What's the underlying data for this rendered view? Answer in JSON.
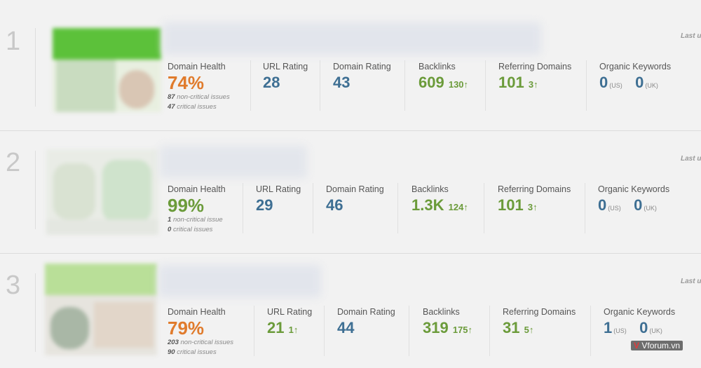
{
  "last_updated_label": "Last u",
  "rows": [
    {
      "rank": "1",
      "domain_health": {
        "label": "Domain Health",
        "value": "74%",
        "noncritical_count": "87",
        "noncritical_text": "non-critical issues",
        "critical_count": "47",
        "critical_text": "critical issues"
      },
      "url_rating": {
        "label": "URL Rating",
        "value": "28",
        "delta": ""
      },
      "domain_rating": {
        "label": "Domain Rating",
        "value": "43"
      },
      "backlinks": {
        "label": "Backlinks",
        "value": "609",
        "delta": "130"
      },
      "referring_domains": {
        "label": "Referring Domains",
        "value": "101",
        "delta": "3"
      },
      "organic_keywords": {
        "label": "Organic Keywords",
        "us_value": "0",
        "us_label": "(US)",
        "uk_value": "0",
        "uk_label": "(UK)"
      }
    },
    {
      "rank": "2",
      "domain_health": {
        "label": "Domain Health",
        "value": "99%",
        "noncritical_count": "1",
        "noncritical_text": "non-critical issue",
        "critical_count": "0",
        "critical_text": "critical issues"
      },
      "url_rating": {
        "label": "URL Rating",
        "value": "29",
        "delta": ""
      },
      "domain_rating": {
        "label": "Domain Rating",
        "value": "46"
      },
      "backlinks": {
        "label": "Backlinks",
        "value": "1.3K",
        "delta": "124"
      },
      "referring_domains": {
        "label": "Referring Domains",
        "value": "101",
        "delta": "3"
      },
      "organic_keywords": {
        "label": "Organic Keywords",
        "us_value": "0",
        "us_label": "(US)",
        "uk_value": "0",
        "uk_label": "(UK)"
      }
    },
    {
      "rank": "3",
      "domain_health": {
        "label": "Domain Health",
        "value": "79%",
        "noncritical_count": "203",
        "noncritical_text": "non-critical issues",
        "critical_count": "90",
        "critical_text": "critical issues"
      },
      "url_rating": {
        "label": "URL Rating",
        "value": "21",
        "delta": "1"
      },
      "domain_rating": {
        "label": "Domain Rating",
        "value": "44"
      },
      "backlinks": {
        "label": "Backlinks",
        "value": "319",
        "delta": "175"
      },
      "referring_domains": {
        "label": "Referring Domains",
        "value": "31",
        "delta": "5"
      },
      "organic_keywords": {
        "label": "Organic Keywords",
        "us_value": "1",
        "us_label": "(US)",
        "uk_value": "0",
        "uk_label": "(UK)"
      }
    }
  ],
  "watermark": {
    "logo": "V",
    "text": "Vforum.vn"
  },
  "colors": {
    "orange": "#e07b2c",
    "green": "#6b9b3a",
    "blue": "#3e6f93"
  }
}
